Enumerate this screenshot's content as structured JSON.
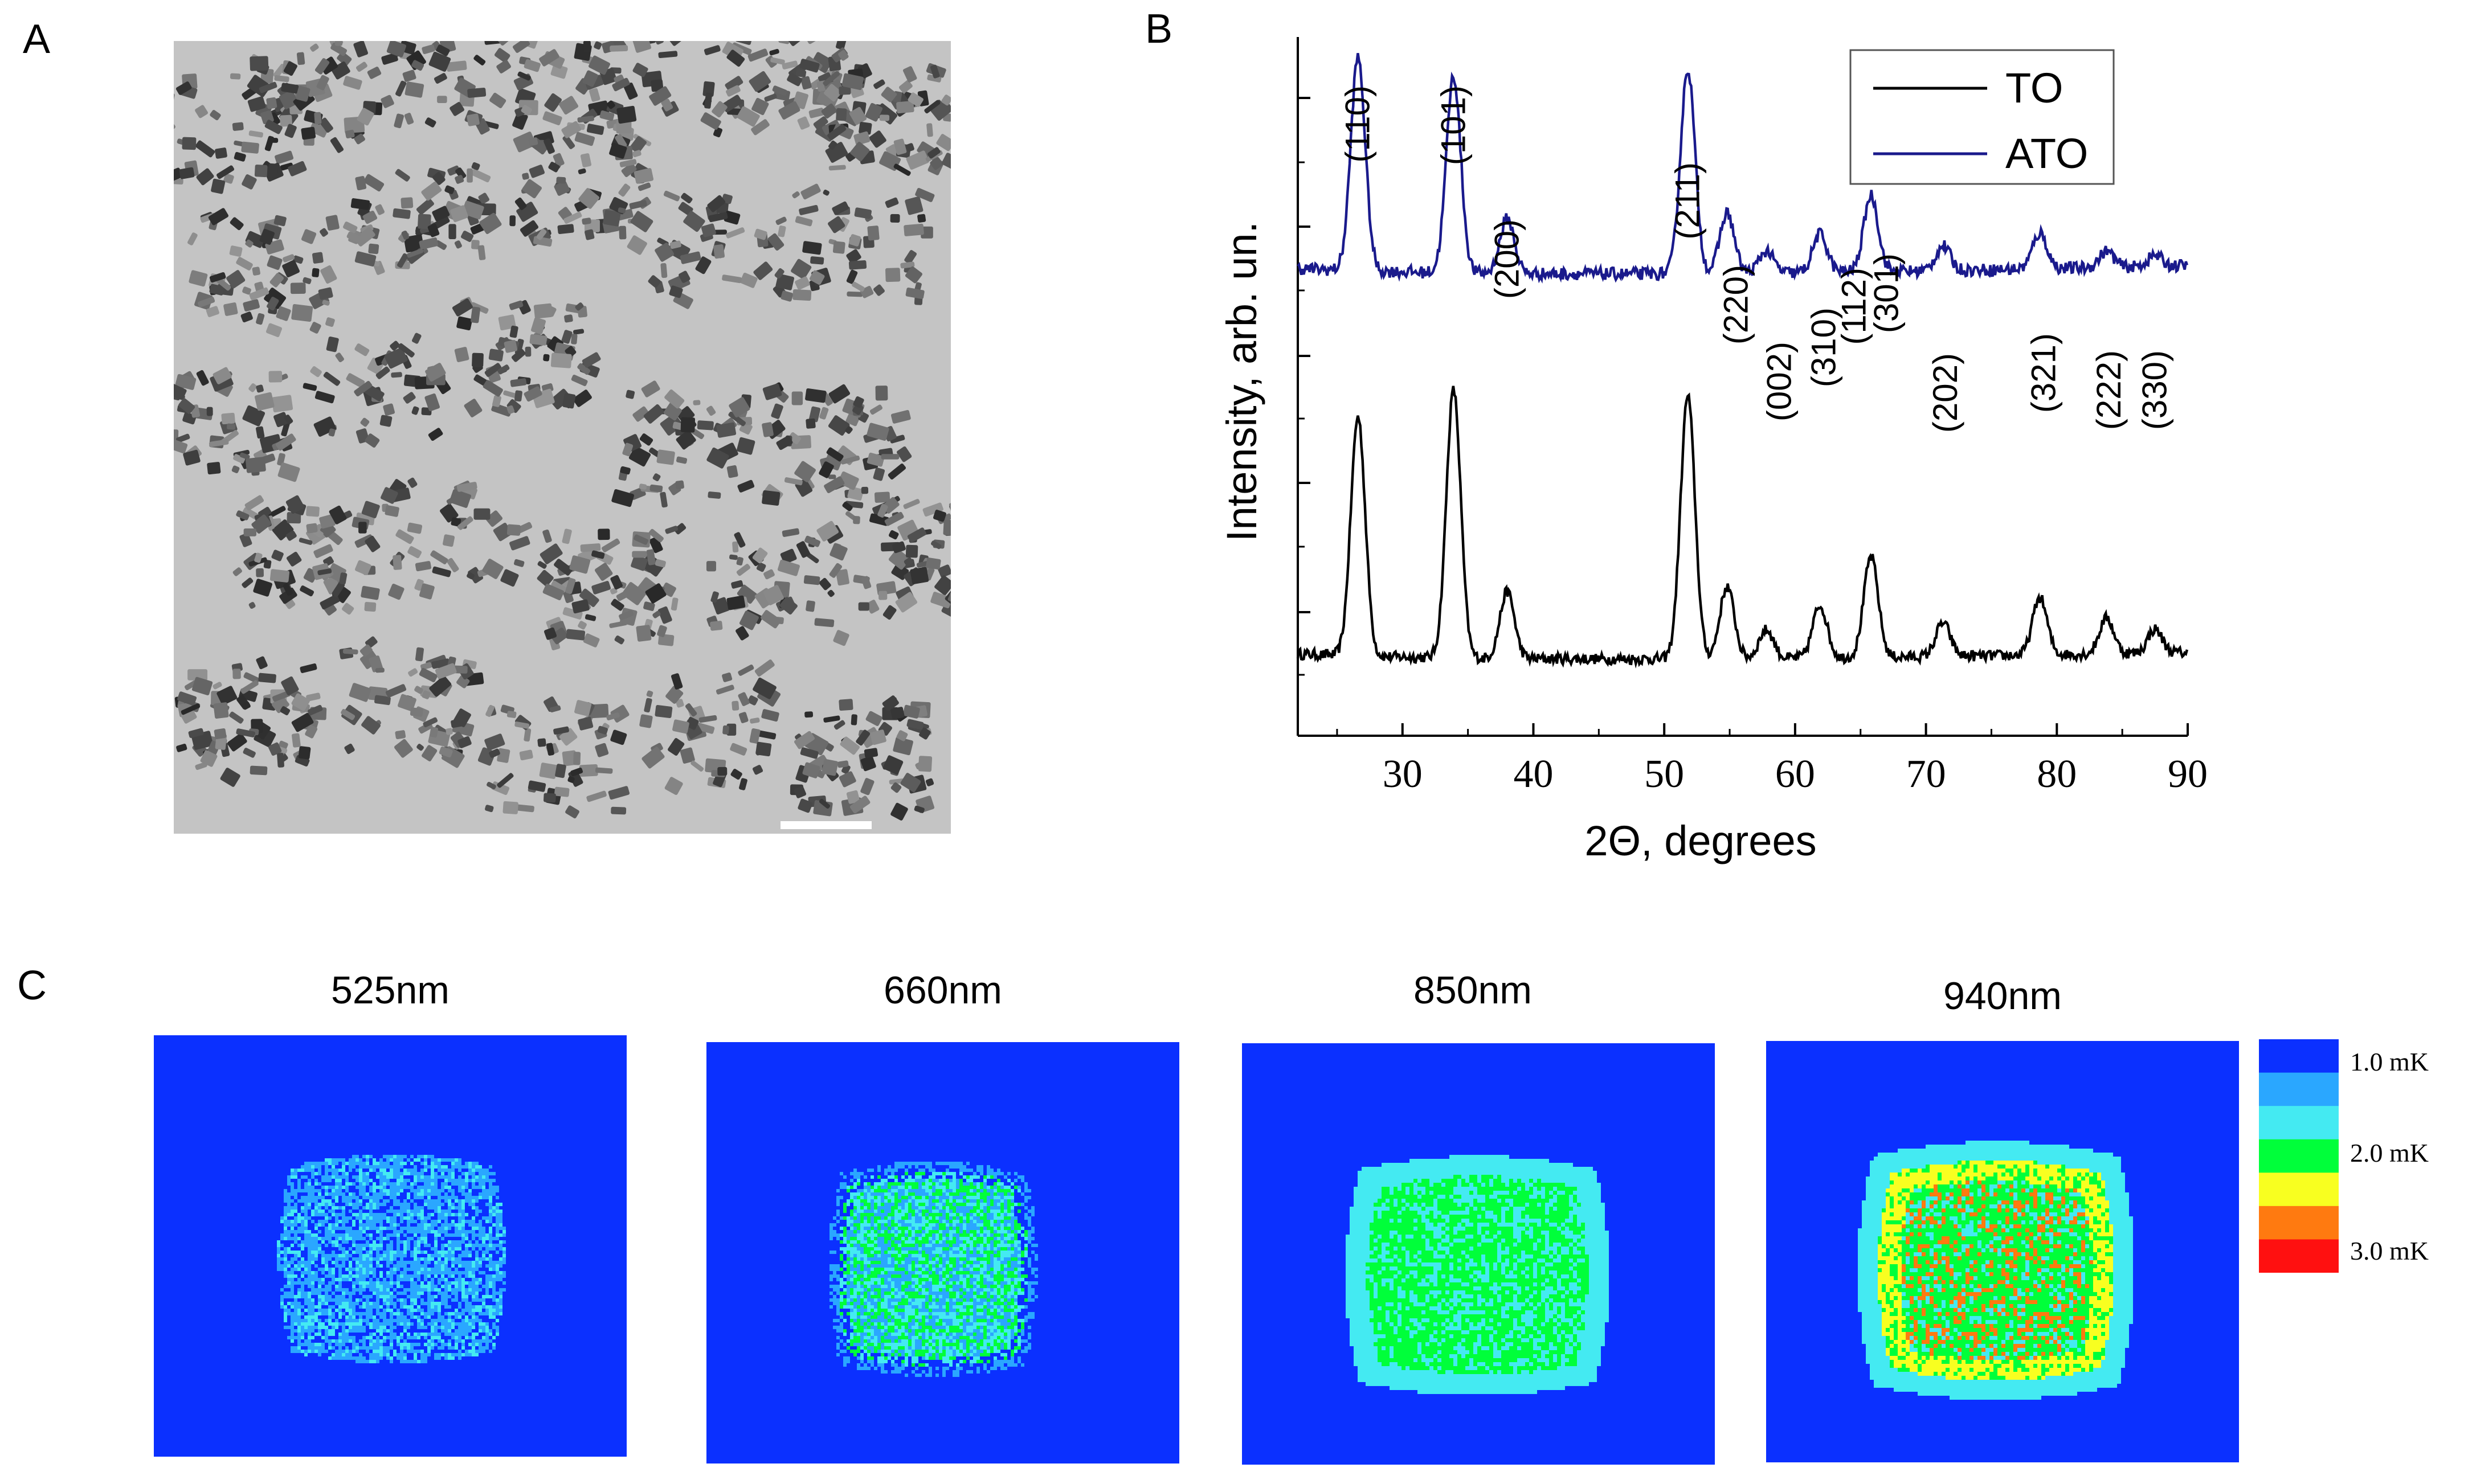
{
  "panels": {
    "a": "A",
    "b": "B",
    "c": "C"
  },
  "chart_data": {
    "type": "line",
    "xlabel": "2Θ, degrees",
    "ylabel": "Intensity, arb. un.",
    "xlim": [
      22,
      90
    ],
    "xticks": [
      30,
      40,
      50,
      60,
      70,
      80,
      90
    ],
    "legend": {
      "placement": "top-right"
    },
    "series": [
      {
        "name": "TO",
        "color": "#000000",
        "peaks": [
          [
            26.6,
            1.0
          ],
          [
            33.9,
            1.12
          ],
          [
            38.0,
            0.28
          ],
          [
            51.8,
            1.1
          ],
          [
            54.8,
            0.3
          ],
          [
            57.8,
            0.12
          ],
          [
            61.9,
            0.22
          ],
          [
            65.8,
            0.42
          ],
          [
            71.3,
            0.14
          ],
          [
            78.7,
            0.24
          ],
          [
            83.8,
            0.15
          ],
          [
            87.5,
            0.1
          ]
        ]
      },
      {
        "name": "ATO",
        "color": "#1a1a8c",
        "peaks": [
          [
            26.6,
            0.78
          ],
          [
            33.9,
            0.72
          ],
          [
            38.0,
            0.2
          ],
          [
            51.8,
            0.75
          ],
          [
            54.8,
            0.22
          ],
          [
            57.8,
            0.08
          ],
          [
            61.9,
            0.14
          ],
          [
            65.8,
            0.28
          ],
          [
            71.3,
            0.09
          ],
          [
            78.7,
            0.13
          ],
          [
            83.8,
            0.06
          ],
          [
            87.5,
            0.04
          ]
        ]
      }
    ],
    "annotations": [
      "(110)",
      "(101)",
      "(200)",
      "(211)",
      "(220)",
      "(002)",
      "(310)",
      "(112)",
      "(301)",
      "(202)",
      "(321)",
      "(222)",
      "(330)"
    ]
  },
  "thermal": {
    "titles": [
      "525nm",
      "660nm",
      "850nm",
      "940nm"
    ],
    "colorbar": {
      "labels": [
        "1.0 mK",
        "2.0 mK",
        "3.0 mK"
      ],
      "colors": [
        "#0b30ff",
        "#2aa7ff",
        "#44eaf2",
        "#00ff3a",
        "#f8ff20",
        "#ff7a10",
        "#ff1010"
      ]
    }
  }
}
